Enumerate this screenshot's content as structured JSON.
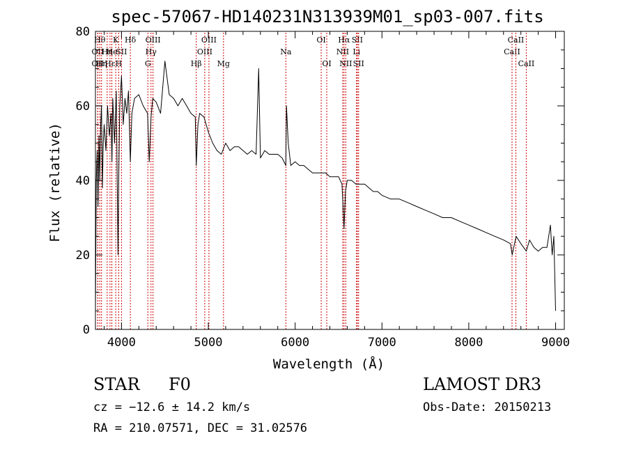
{
  "chart_data": {
    "type": "line",
    "title": "spec-57067-HD140231N313939M01_sp03-007.fits",
    "xlabel": "Wavelength (Å)",
    "ylabel": "Flux (relative)",
    "xlim": [
      3700,
      9100
    ],
    "ylim": [
      0,
      80
    ],
    "x_ticks": [
      4000,
      5000,
      6000,
      7000,
      8000,
      9000
    ],
    "x_tick_labels": [
      "4000",
      "5000",
      "6000",
      "7000",
      "8000",
      "9000"
    ],
    "y_ticks": [
      0,
      20,
      40,
      60,
      80
    ],
    "y_tick_labels": [
      "0",
      "20",
      "40",
      "60",
      "80"
    ],
    "series": [
      {
        "name": "flux",
        "x": [
          3700,
          3710,
          3720,
          3730,
          3740,
          3750,
          3760,
          3770,
          3780,
          3790,
          3800,
          3820,
          3840,
          3860,
          3880,
          3890,
          3900,
          3920,
          3940,
          3960,
          3968,
          3980,
          4000,
          4020,
          4040,
          4060,
          4080,
          4102,
          4120,
          4150,
          4200,
          4250,
          4300,
          4320,
          4340,
          4360,
          4400,
          4450,
          4500,
          4550,
          4600,
          4650,
          4700,
          4750,
          4800,
          4850,
          4861,
          4880,
          4900,
          4950,
          5000,
          5050,
          5100,
          5150,
          5200,
          5250,
          5300,
          5350,
          5400,
          5450,
          5500,
          5550,
          5580,
          5600,
          5650,
          5700,
          5750,
          5800,
          5850,
          5893,
          5900,
          5920,
          5950,
          6000,
          6050,
          6100,
          6150,
          6200,
          6250,
          6300,
          6350,
          6400,
          6450,
          6500,
          6540,
          6563,
          6580,
          6600,
          6650,
          6700,
          6750,
          6800,
          6850,
          6900,
          6950,
          7000,
          7100,
          7200,
          7300,
          7400,
          7500,
          7600,
          7700,
          7800,
          7900,
          8000,
          8100,
          8200,
          8300,
          8400,
          8480,
          8500,
          8545,
          8600,
          8662,
          8700,
          8750,
          8800,
          8850,
          8900,
          8940,
          8960,
          8980,
          9000
        ],
        "y": [
          5,
          40,
          48,
          33,
          52,
          40,
          55,
          60,
          38,
          50,
          55,
          48,
          60,
          52,
          58,
          45,
          62,
          50,
          64,
          20,
          40,
          60,
          68,
          55,
          62,
          58,
          64,
          45,
          58,
          62,
          63,
          60,
          58,
          45,
          57,
          62,
          61,
          58,
          72,
          63,
          62,
          60,
          62,
          60,
          58,
          57,
          44,
          55,
          58,
          57,
          53,
          50,
          48,
          47,
          50,
          48,
          49,
          49,
          48,
          47,
          48,
          47,
          70,
          46,
          48,
          47,
          47,
          47,
          46,
          44,
          60,
          50,
          44,
          45,
          44,
          44,
          43,
          42,
          42,
          42,
          42,
          41,
          41,
          41,
          39,
          27,
          37,
          40,
          40,
          39,
          39,
          39,
          38,
          37,
          37,
          36,
          35,
          35,
          34,
          33,
          32,
          31,
          30,
          30,
          29,
          28,
          27,
          26,
          25,
          24,
          23,
          20,
          25,
          23,
          21,
          24,
          22,
          21,
          22,
          22,
          28,
          20,
          25,
          5
        ]
      }
    ],
    "line_markers": [
      {
        "wavelength": 3727,
        "label": "OII",
        "row": 2
      },
      {
        "wavelength": 3727,
        "label": "OII",
        "row": 3
      },
      {
        "wavelength": 3750,
        "label": "Hθ",
        "row": 1
      },
      {
        "wavelength": 3770,
        "label": "Hη",
        "row": 3
      },
      {
        "wavelength": 3835,
        "label": "Hη",
        "row": 2
      },
      {
        "wavelength": 3868,
        "label": "Hε",
        "row": 3
      },
      {
        "wavelength": 3889,
        "label": "He",
        "row": 2
      },
      {
        "wavelength": 3934,
        "label": "K",
        "row": 1
      },
      {
        "wavelength": 3968,
        "label": "H",
        "row": 3
      },
      {
        "wavelength": 4000,
        "label": "SII",
        "row": 2
      },
      {
        "wavelength": 4102,
        "label": "Hδ",
        "row": 1
      },
      {
        "wavelength": 4304,
        "label": "G",
        "row": 3
      },
      {
        "wavelength": 4340,
        "label": "Hγ",
        "row": 2
      },
      {
        "wavelength": 4363,
        "label": "OIII",
        "row": 1
      },
      {
        "wavelength": 4861,
        "label": "Hβ",
        "row": 3
      },
      {
        "wavelength": 4959,
        "label": "OIII",
        "row": 2
      },
      {
        "wavelength": 5007,
        "label": "OIII",
        "row": 1
      },
      {
        "wavelength": 5175,
        "label": "Mg",
        "row": 3
      },
      {
        "wavelength": 5893,
        "label": "Na",
        "row": 2
      },
      {
        "wavelength": 6300,
        "label": "OI",
        "row": 1
      },
      {
        "wavelength": 6364,
        "label": "OI",
        "row": 3
      },
      {
        "wavelength": 6548,
        "label": "NII",
        "row": 2
      },
      {
        "wavelength": 6563,
        "label": "Hα",
        "row": 1
      },
      {
        "wavelength": 6583,
        "label": "NII",
        "row": 3
      },
      {
        "wavelength": 6707,
        "label": "Li",
        "row": 2
      },
      {
        "wavelength": 6716,
        "label": "SII",
        "row": 1
      },
      {
        "wavelength": 6731,
        "label": "SII",
        "row": 3
      },
      {
        "wavelength": 8498,
        "label": "CaII",
        "row": 2
      },
      {
        "wavelength": 8542,
        "label": "CaII",
        "row": 1
      },
      {
        "wavelength": 8662,
        "label": "CaII",
        "row": 3
      }
    ],
    "grid": false,
    "legend": "none"
  },
  "info": {
    "object_type": "STAR",
    "subclass": "F0",
    "survey": "LAMOST DR3",
    "redshift": "cz = −12.6 ± 14.2 km/s",
    "obs_date": "Obs-Date: 20150213",
    "coords": "RA = 210.07571, DEC =  31.02576"
  },
  "colors": {
    "axis": "#000000",
    "spectrum": "#000000",
    "marker_line": "#cc0000",
    "background": "#ffffff"
  }
}
